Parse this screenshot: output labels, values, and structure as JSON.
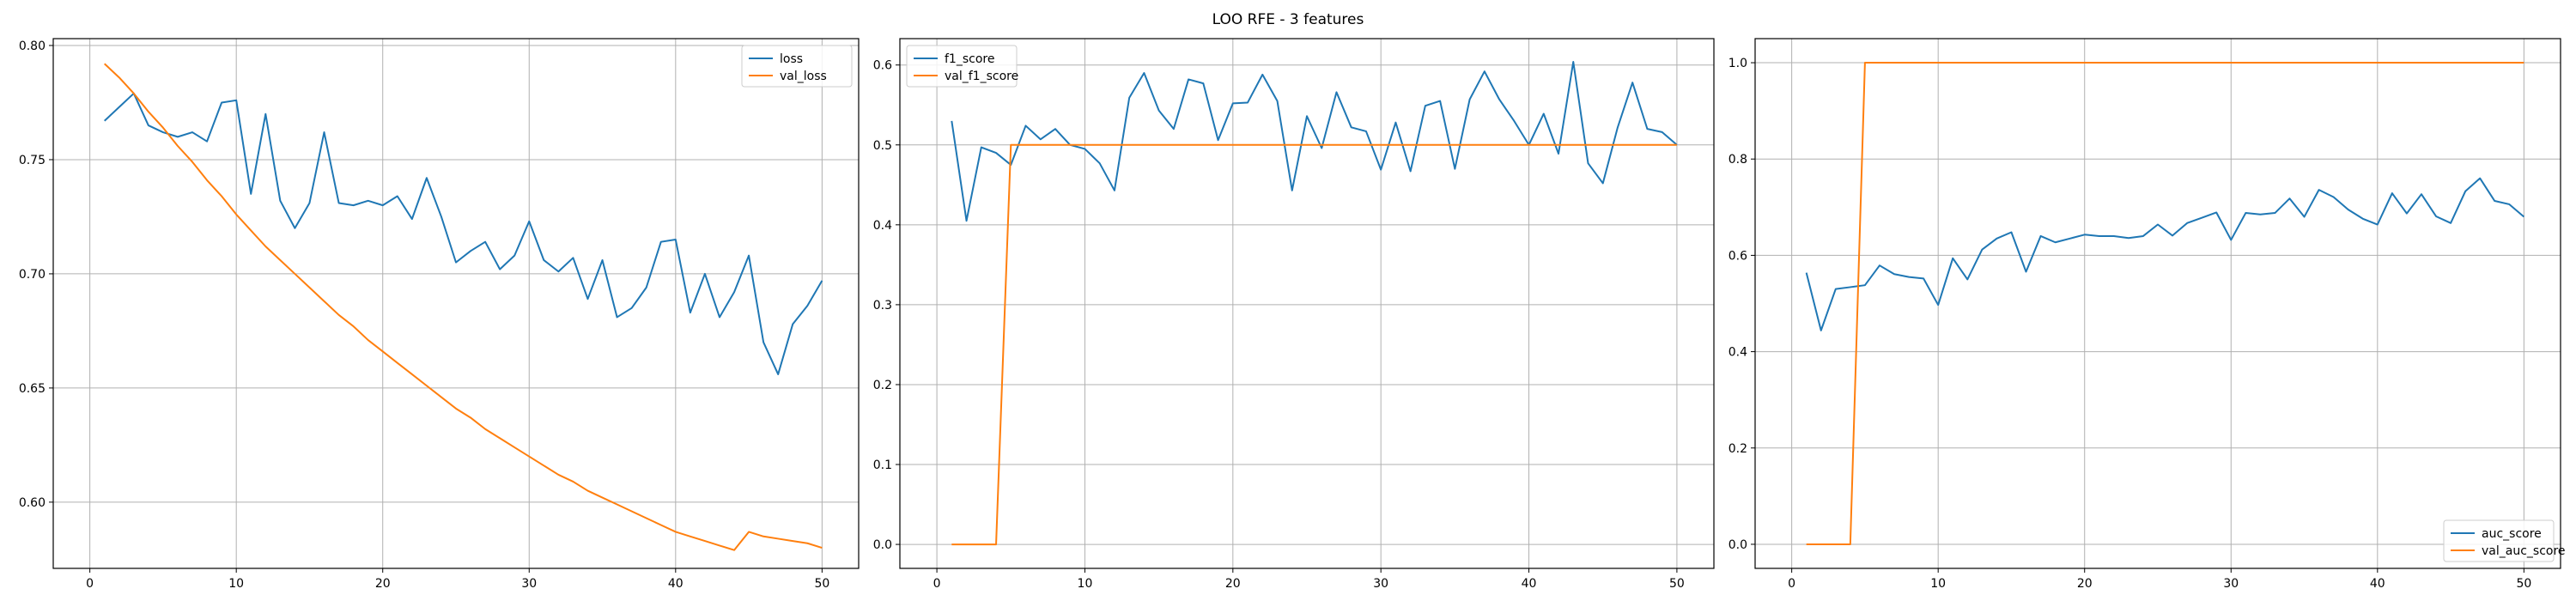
{
  "figure": {
    "title": "LOO RFE - 3 features"
  },
  "colors": {
    "series_1": "#1f77b4",
    "series_2": "#ff7f0e",
    "grid": "#b0b0b0"
  },
  "chart_data": [
    {
      "type": "line",
      "xlabel": "",
      "ylabel": "",
      "xlim": [
        -2.5,
        52.5
      ],
      "ylim": [
        0.571,
        0.803
      ],
      "xticks": [
        0,
        10,
        20,
        30,
        40,
        50
      ],
      "xtick_labels": [
        "0",
        "10",
        "20",
        "30",
        "40",
        "50"
      ],
      "yticks": [
        0.6,
        0.65,
        0.7,
        0.75,
        0.8
      ],
      "ytick_labels": [
        "0.60",
        "0.65",
        "0.70",
        "0.75",
        "0.80"
      ],
      "grid": true,
      "legend_position": "top-right",
      "x": [
        1,
        2,
        3,
        4,
        5,
        6,
        7,
        8,
        9,
        10,
        11,
        12,
        13,
        14,
        15,
        16,
        17,
        18,
        19,
        20,
        21,
        22,
        23,
        24,
        25,
        26,
        27,
        28,
        29,
        30,
        31,
        32,
        33,
        34,
        35,
        36,
        37,
        38,
        39,
        40,
        41,
        42,
        43,
        44,
        45,
        46,
        47,
        48,
        49,
        50
      ],
      "series": [
        {
          "name": "loss",
          "color": "#1f77b4",
          "values": [
            0.767,
            0.773,
            0.779,
            0.765,
            0.762,
            0.76,
            0.762,
            0.758,
            0.775,
            0.776,
            0.735,
            0.77,
            0.732,
            0.72,
            0.731,
            0.762,
            0.731,
            0.73,
            0.732,
            0.73,
            0.734,
            0.724,
            0.742,
            0.725,
            0.705,
            0.71,
            0.714,
            0.702,
            0.708,
            0.723,
            0.706,
            0.701,
            0.707,
            0.689,
            0.706,
            0.681,
            0.685,
            0.694,
            0.714,
            0.715,
            0.683,
            0.7,
            0.681,
            0.692,
            0.708,
            0.67,
            0.656,
            0.678,
            0.686,
            0.697
          ]
        },
        {
          "name": "val_loss",
          "color": "#ff7f0e",
          "values": [
            0.792,
            0.786,
            0.779,
            0.771,
            0.764,
            0.756,
            0.749,
            0.741,
            0.734,
            0.726,
            0.719,
            0.712,
            0.706,
            0.7,
            0.694,
            0.688,
            0.682,
            0.677,
            0.671,
            0.666,
            0.661,
            0.656,
            0.651,
            0.646,
            0.641,
            0.637,
            0.632,
            0.628,
            0.624,
            0.62,
            0.616,
            0.612,
            0.609,
            0.605,
            0.602,
            0.599,
            0.596,
            0.593,
            0.59,
            0.587,
            0.585,
            0.583,
            0.581,
            0.579,
            0.587,
            0.585,
            0.584,
            0.583,
            0.582,
            0.58
          ]
        }
      ]
    },
    {
      "type": "line",
      "xlabel": "",
      "ylabel": "",
      "xlim": [
        -2.5,
        52.5
      ],
      "ylim": [
        -0.03,
        0.633
      ],
      "xticks": [
        0,
        10,
        20,
        30,
        40,
        50
      ],
      "xtick_labels": [
        "0",
        "10",
        "20",
        "30",
        "40",
        "50"
      ],
      "yticks": [
        0.0,
        0.1,
        0.2,
        0.3,
        0.4,
        0.5,
        0.6
      ],
      "ytick_labels": [
        "0.0",
        "0.1",
        "0.2",
        "0.3",
        "0.4",
        "0.5",
        "0.6"
      ],
      "grid": true,
      "legend_position": "top-left",
      "x": [
        1,
        2,
        3,
        4,
        5,
        6,
        7,
        8,
        9,
        10,
        11,
        12,
        13,
        14,
        15,
        16,
        17,
        18,
        19,
        20,
        21,
        22,
        23,
        24,
        25,
        26,
        27,
        28,
        29,
        30,
        31,
        32,
        33,
        34,
        35,
        36,
        37,
        38,
        39,
        40,
        41,
        42,
        43,
        44,
        45,
        46,
        47,
        48,
        49,
        50
      ],
      "series": [
        {
          "name": "f1_score",
          "color": "#1f77b4",
          "values": [
            0.53,
            0.405,
            0.497,
            0.49,
            0.475,
            0.524,
            0.507,
            0.52,
            0.5,
            0.495,
            0.477,
            0.443,
            0.559,
            0.59,
            0.543,
            0.52,
            0.582,
            0.577,
            0.506,
            0.552,
            0.553,
            0.588,
            0.555,
            0.443,
            0.536,
            0.496,
            0.566,
            0.522,
            0.517,
            0.469,
            0.528,
            0.467,
            0.549,
            0.555,
            0.47,
            0.557,
            0.592,
            0.557,
            0.53,
            0.5,
            0.539,
            0.489,
            0.604,
            0.477,
            0.452,
            0.522,
            0.578,
            0.52,
            0.516,
            0.5
          ]
        },
        {
          "name": "val_f1_score",
          "color": "#ff7f0e",
          "values": [
            0.0,
            0.0,
            0.0,
            0.0,
            0.5,
            0.5,
            0.5,
            0.5,
            0.5,
            0.5,
            0.5,
            0.5,
            0.5,
            0.5,
            0.5,
            0.5,
            0.5,
            0.5,
            0.5,
            0.5,
            0.5,
            0.5,
            0.5,
            0.5,
            0.5,
            0.5,
            0.5,
            0.5,
            0.5,
            0.5,
            0.5,
            0.5,
            0.5,
            0.5,
            0.5,
            0.5,
            0.5,
            0.5,
            0.5,
            0.5,
            0.5,
            0.5,
            0.5,
            0.5,
            0.5,
            0.5,
            0.5,
            0.5,
            0.5,
            0.5
          ]
        }
      ]
    },
    {
      "type": "line",
      "xlabel": "",
      "ylabel": "",
      "xlim": [
        -2.5,
        52.5
      ],
      "ylim": [
        -0.05,
        1.05
      ],
      "xticks": [
        0,
        10,
        20,
        30,
        40,
        50
      ],
      "xtick_labels": [
        "0",
        "10",
        "20",
        "30",
        "40",
        "50"
      ],
      "yticks": [
        0.0,
        0.2,
        0.4,
        0.6,
        0.8,
        1.0
      ],
      "ytick_labels": [
        "0.0",
        "0.2",
        "0.4",
        "0.6",
        "0.8",
        "1.0"
      ],
      "grid": true,
      "legend_position": "bottom-right",
      "x": [
        1,
        2,
        3,
        4,
        5,
        6,
        7,
        8,
        9,
        10,
        11,
        12,
        13,
        14,
        15,
        16,
        17,
        18,
        19,
        20,
        21,
        22,
        23,
        24,
        25,
        26,
        27,
        28,
        29,
        30,
        31,
        32,
        33,
        34,
        35,
        36,
        37,
        38,
        39,
        40,
        41,
        42,
        43,
        44,
        45,
        46,
        47,
        48,
        49,
        50
      ],
      "series": [
        {
          "name": "auc_score",
          "color": "#1f77b4",
          "values": [
            0.564,
            0.444,
            0.53,
            0.534,
            0.538,
            0.579,
            0.561,
            0.555,
            0.552,
            0.497,
            0.594,
            0.55,
            0.612,
            0.635,
            0.648,
            0.566,
            0.64,
            0.627,
            0.635,
            0.643,
            0.64,
            0.64,
            0.636,
            0.64,
            0.664,
            0.641,
            0.667,
            0.678,
            0.689,
            0.632,
            0.688,
            0.685,
            0.688,
            0.718,
            0.68,
            0.736,
            0.721,
            0.695,
            0.676,
            0.664,
            0.729,
            0.687,
            0.727,
            0.681,
            0.667,
            0.733,
            0.76,
            0.713,
            0.706,
            0.68
          ]
        },
        {
          "name": "val_auc_score",
          "color": "#ff7f0e",
          "values": [
            0.0,
            0.0,
            0.0,
            0.0,
            1.0,
            1.0,
            1.0,
            1.0,
            1.0,
            1.0,
            1.0,
            1.0,
            1.0,
            1.0,
            1.0,
            1.0,
            1.0,
            1.0,
            1.0,
            1.0,
            1.0,
            1.0,
            1.0,
            1.0,
            1.0,
            1.0,
            1.0,
            1.0,
            1.0,
            1.0,
            1.0,
            1.0,
            1.0,
            1.0,
            1.0,
            1.0,
            1.0,
            1.0,
            1.0,
            1.0,
            1.0,
            1.0,
            1.0,
            1.0,
            1.0,
            1.0,
            1.0,
            1.0,
            1.0,
            1.0
          ]
        }
      ]
    }
  ]
}
